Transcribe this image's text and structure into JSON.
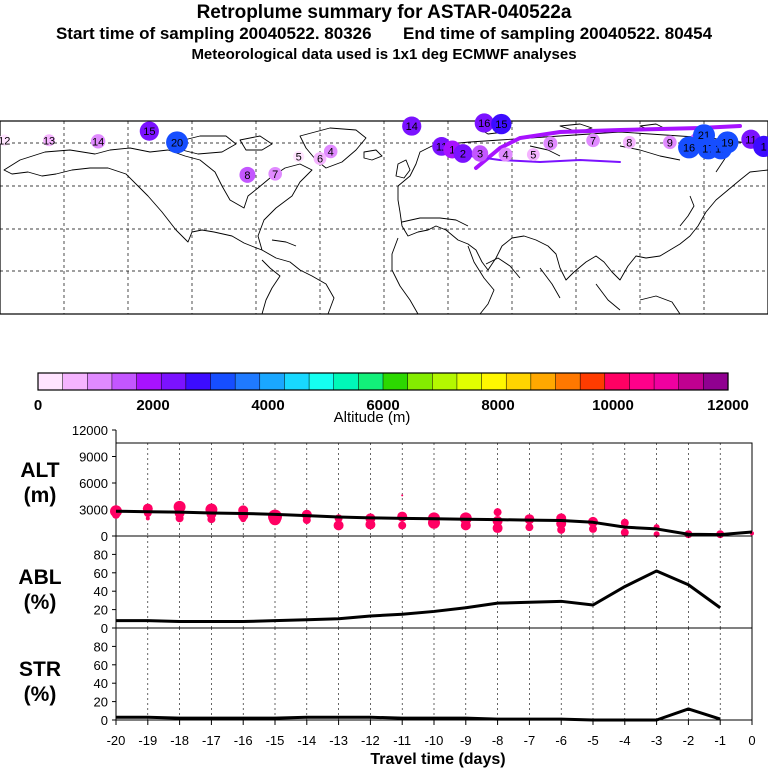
{
  "header": {
    "title": "Retroplume summary for ASTAR-040522a",
    "start_label": "Start time of sampling",
    "start_value": "20040522. 80326",
    "end_label": "End time of sampling",
    "end_value": "20040522. 80454",
    "met_line": "Meteorological data used is 1x1 deg ECMWF analyses"
  },
  "map": {
    "markers": [
      {
        "label": "12",
        "lon": -178,
        "lat": 76,
        "alt": 400
      },
      {
        "label": "13",
        "lon": -157,
        "lat": 76,
        "alt": 500
      },
      {
        "label": "14",
        "lon": -134,
        "lat": 75,
        "alt": 1100
      },
      {
        "label": "15",
        "lon": -110,
        "lat": 85,
        "alt": 2300
      },
      {
        "label": "20",
        "lon": -97,
        "lat": 74,
        "alt": 3000
      },
      {
        "label": "4",
        "lon": -25,
        "lat": 65,
        "alt": 900
      },
      {
        "label": "5",
        "lon": -40,
        "lat": 60,
        "alt": 300
      },
      {
        "label": "6",
        "lon": -30,
        "lat": 58,
        "alt": 700
      },
      {
        "label": "7",
        "lon": -51,
        "lat": 43,
        "alt": 900
      },
      {
        "label": "8",
        "lon": -64,
        "lat": 42,
        "alt": 1500
      },
      {
        "label": "14",
        "lon": 13,
        "lat": 90,
        "alt": 2300
      },
      {
        "label": "16",
        "lon": 47,
        "lat": 93,
        "alt": 2300
      },
      {
        "label": "15",
        "lon": 55,
        "lat": 92,
        "alt": 2600
      },
      {
        "label": "11",
        "lon": 27,
        "lat": 70,
        "alt": 2200
      },
      {
        "label": "1",
        "lon": 32,
        "lat": 67,
        "alt": 2000
      },
      {
        "label": "2",
        "lon": 37,
        "lat": 63,
        "alt": 2200
      },
      {
        "label": "3",
        "lon": 45,
        "lat": 63,
        "alt": 1600
      },
      {
        "label": "4",
        "lon": 57,
        "lat": 62,
        "alt": 1000
      },
      {
        "label": "5",
        "lon": 70,
        "lat": 62,
        "alt": 700
      },
      {
        "label": "6",
        "lon": 78,
        "lat": 73,
        "alt": 1000
      },
      {
        "label": "7",
        "lon": 98,
        "lat": 76,
        "alt": 900
      },
      {
        "label": "8",
        "lon": 115,
        "lat": 74,
        "alt": 700
      },
      {
        "label": "9",
        "lon": 134,
        "lat": 74,
        "alt": 900
      },
      {
        "label": "10",
        "lon": 147,
        "lat": 76,
        "alt": 1400
      },
      {
        "label": "21",
        "lon": 150,
        "lat": 81,
        "alt": 3000
      },
      {
        "label": "16",
        "lon": 143,
        "lat": 69,
        "alt": 3000
      },
      {
        "label": "17",
        "lon": 152,
        "lat": 68,
        "alt": 3200
      },
      {
        "label": "18",
        "lon": 158,
        "lat": 68,
        "alt": 3200
      },
      {
        "label": "19",
        "lon": 161,
        "lat": 74,
        "alt": 3300
      },
      {
        "label": "11",
        "lon": 172,
        "lat": 77,
        "alt": 2300
      },
      {
        "label": "1",
        "lon": 178,
        "lat": 70,
        "alt": 2800
      }
    ]
  },
  "colorbar": {
    "colors": [
      "#ffe4ff",
      "#f5b4ff",
      "#e08aff",
      "#c356ff",
      "#a812ff",
      "#7b12ff",
      "#3c0cff",
      "#164eff",
      "#1f7aff",
      "#1aa7ff",
      "#18d8ff",
      "#15fff1",
      "#00f8b8",
      "#12f07a",
      "#2cd800",
      "#84ec00",
      "#b4f700",
      "#e1ff00",
      "#fff700",
      "#ffd400",
      "#ffa800",
      "#ff7800",
      "#ff3c00",
      "#ff0063",
      "#ff008a",
      "#ef00a0",
      "#c00090",
      "#900090"
    ],
    "tick_labels": [
      "0",
      "2000",
      "4000",
      "6000",
      "8000",
      "10000",
      "12000"
    ],
    "axis_label": "Altitude (m)"
  },
  "chart_data": [
    {
      "type": "line",
      "panel": "ALT",
      "ylabel_line1": "ALT",
      "ylabel_line2": "(m)",
      "ylim": [
        0,
        12000
      ],
      "yticks": [
        "0",
        "3000",
        "6000",
        "9000",
        "12000"
      ],
      "x": [
        -20,
        -19,
        -18,
        -17,
        -16,
        -15,
        -14,
        -13,
        -12,
        -11,
        -10,
        -9,
        -8,
        -7,
        -6,
        -5,
        -4,
        -3,
        -2,
        -1,
        0
      ],
      "series": [
        {
          "name": "mean altitude",
          "values": [
            2800,
            2750,
            2700,
            2600,
            2550,
            2450,
            2300,
            2150,
            2050,
            2000,
            1950,
            1900,
            1850,
            1800,
            1750,
            1550,
            1000,
            800,
            200,
            150,
            450
          ]
        }
      ],
      "scatter": [
        {
          "x": -20,
          "y": 2800,
          "r": 6
        },
        {
          "x": -20,
          "y": 2400,
          "r": 4
        },
        {
          "x": -19,
          "y": 3100,
          "r": 5
        },
        {
          "x": -19,
          "y": 2600,
          "r": 4
        },
        {
          "x": -19,
          "y": 2000,
          "r": 2
        },
        {
          "x": -18,
          "y": 3300,
          "r": 6
        },
        {
          "x": -18,
          "y": 2600,
          "r": 5
        },
        {
          "x": -18,
          "y": 2000,
          "r": 4
        },
        {
          "x": -17,
          "y": 3000,
          "r": 6
        },
        {
          "x": -17,
          "y": 2500,
          "r": 5
        },
        {
          "x": -17,
          "y": 1900,
          "r": 4
        },
        {
          "x": -16,
          "y": 2900,
          "r": 5
        },
        {
          "x": -16,
          "y": 2300,
          "r": 5
        },
        {
          "x": -16,
          "y": 1900,
          "r": 3
        },
        {
          "x": -15,
          "y": 2200,
          "r": 7
        },
        {
          "x": -15,
          "y": 1900,
          "r": 6
        },
        {
          "x": -14,
          "y": 2400,
          "r": 5
        },
        {
          "x": -14,
          "y": 1800,
          "r": 4
        },
        {
          "x": -13,
          "y": 2000,
          "r": 4
        },
        {
          "x": -13,
          "y": 1200,
          "r": 5
        },
        {
          "x": -12,
          "y": 2000,
          "r": 5
        },
        {
          "x": -12,
          "y": 1300,
          "r": 5
        },
        {
          "x": -11,
          "y": 2200,
          "r": 5
        },
        {
          "x": -11,
          "y": 1200,
          "r": 4
        },
        {
          "x": -11,
          "y": 4600,
          "r": 1
        },
        {
          "x": -10,
          "y": 2000,
          "r": 6
        },
        {
          "x": -10,
          "y": 1500,
          "r": 6
        },
        {
          "x": -9,
          "y": 2000,
          "r": 6
        },
        {
          "x": -9,
          "y": 1200,
          "r": 5
        },
        {
          "x": -8,
          "y": 2700,
          "r": 4
        },
        {
          "x": -8,
          "y": 1700,
          "r": 5
        },
        {
          "x": -8,
          "y": 900,
          "r": 5
        },
        {
          "x": -7,
          "y": 1900,
          "r": 5
        },
        {
          "x": -7,
          "y": 1000,
          "r": 4
        },
        {
          "x": -6,
          "y": 2000,
          "r": 5
        },
        {
          "x": -6,
          "y": 1400,
          "r": 5
        },
        {
          "x": -6,
          "y": 700,
          "r": 4
        },
        {
          "x": -5,
          "y": 1600,
          "r": 5
        },
        {
          "x": -5,
          "y": 800,
          "r": 4
        },
        {
          "x": -4,
          "y": 1500,
          "r": 4
        },
        {
          "x": -4,
          "y": 400,
          "r": 4
        },
        {
          "x": -3,
          "y": 1000,
          "r": 3
        },
        {
          "x": -3,
          "y": 200,
          "r": 3
        },
        {
          "x": -2,
          "y": 200,
          "r": 4
        },
        {
          "x": -1,
          "y": 200,
          "r": 4
        },
        {
          "x": 0,
          "y": 300,
          "r": 2
        }
      ]
    },
    {
      "type": "line",
      "panel": "ABL",
      "ylabel_line1": "ABL",
      "ylabel_line2": "(%)",
      "ylim": [
        0,
        100
      ],
      "yticks": [
        "0",
        "20",
        "40",
        "60",
        "80"
      ],
      "x": [
        -20,
        -19,
        -18,
        -17,
        -16,
        -15,
        -14,
        -13,
        -12,
        -11,
        -10,
        -9,
        -8,
        -7,
        -6,
        -5,
        -4,
        -3,
        -2,
        -1
      ],
      "series": [
        {
          "name": "fraction in ABL",
          "values": [
            8,
            8,
            7,
            7,
            7,
            8,
            9,
            10,
            13,
            15,
            18,
            22,
            27,
            28,
            29,
            25,
            45,
            62,
            47,
            22
          ]
        }
      ]
    },
    {
      "type": "line",
      "panel": "STR",
      "ylabel_line1": "STR",
      "ylabel_line2": "(%)",
      "ylim": [
        0,
        100
      ],
      "yticks": [
        "0",
        "20",
        "40",
        "60",
        "80"
      ],
      "x": [
        -20,
        -19,
        -18,
        -17,
        -16,
        -15,
        -14,
        -13,
        -12,
        -11,
        -10,
        -9,
        -8,
        -7,
        -6,
        -5,
        -4,
        -3,
        -2,
        -1
      ],
      "series": [
        {
          "name": "fraction in stratosphere",
          "values": [
            3,
            3,
            2,
            2,
            2,
            2,
            3,
            3,
            3,
            2,
            2,
            2,
            1,
            1,
            1,
            0,
            0,
            0,
            12,
            1
          ]
        }
      ]
    }
  ],
  "xaxis": {
    "tick_labels": [
      "-20",
      "-19",
      "-18",
      "-17",
      "-16",
      "-15",
      "-14",
      "-13",
      "-12",
      "-11",
      "-10",
      "-9",
      "-8",
      "-7",
      "-6",
      "-5",
      "-4",
      "-3",
      "-2",
      "-1",
      "0"
    ],
    "title": "Travel time (days)"
  }
}
